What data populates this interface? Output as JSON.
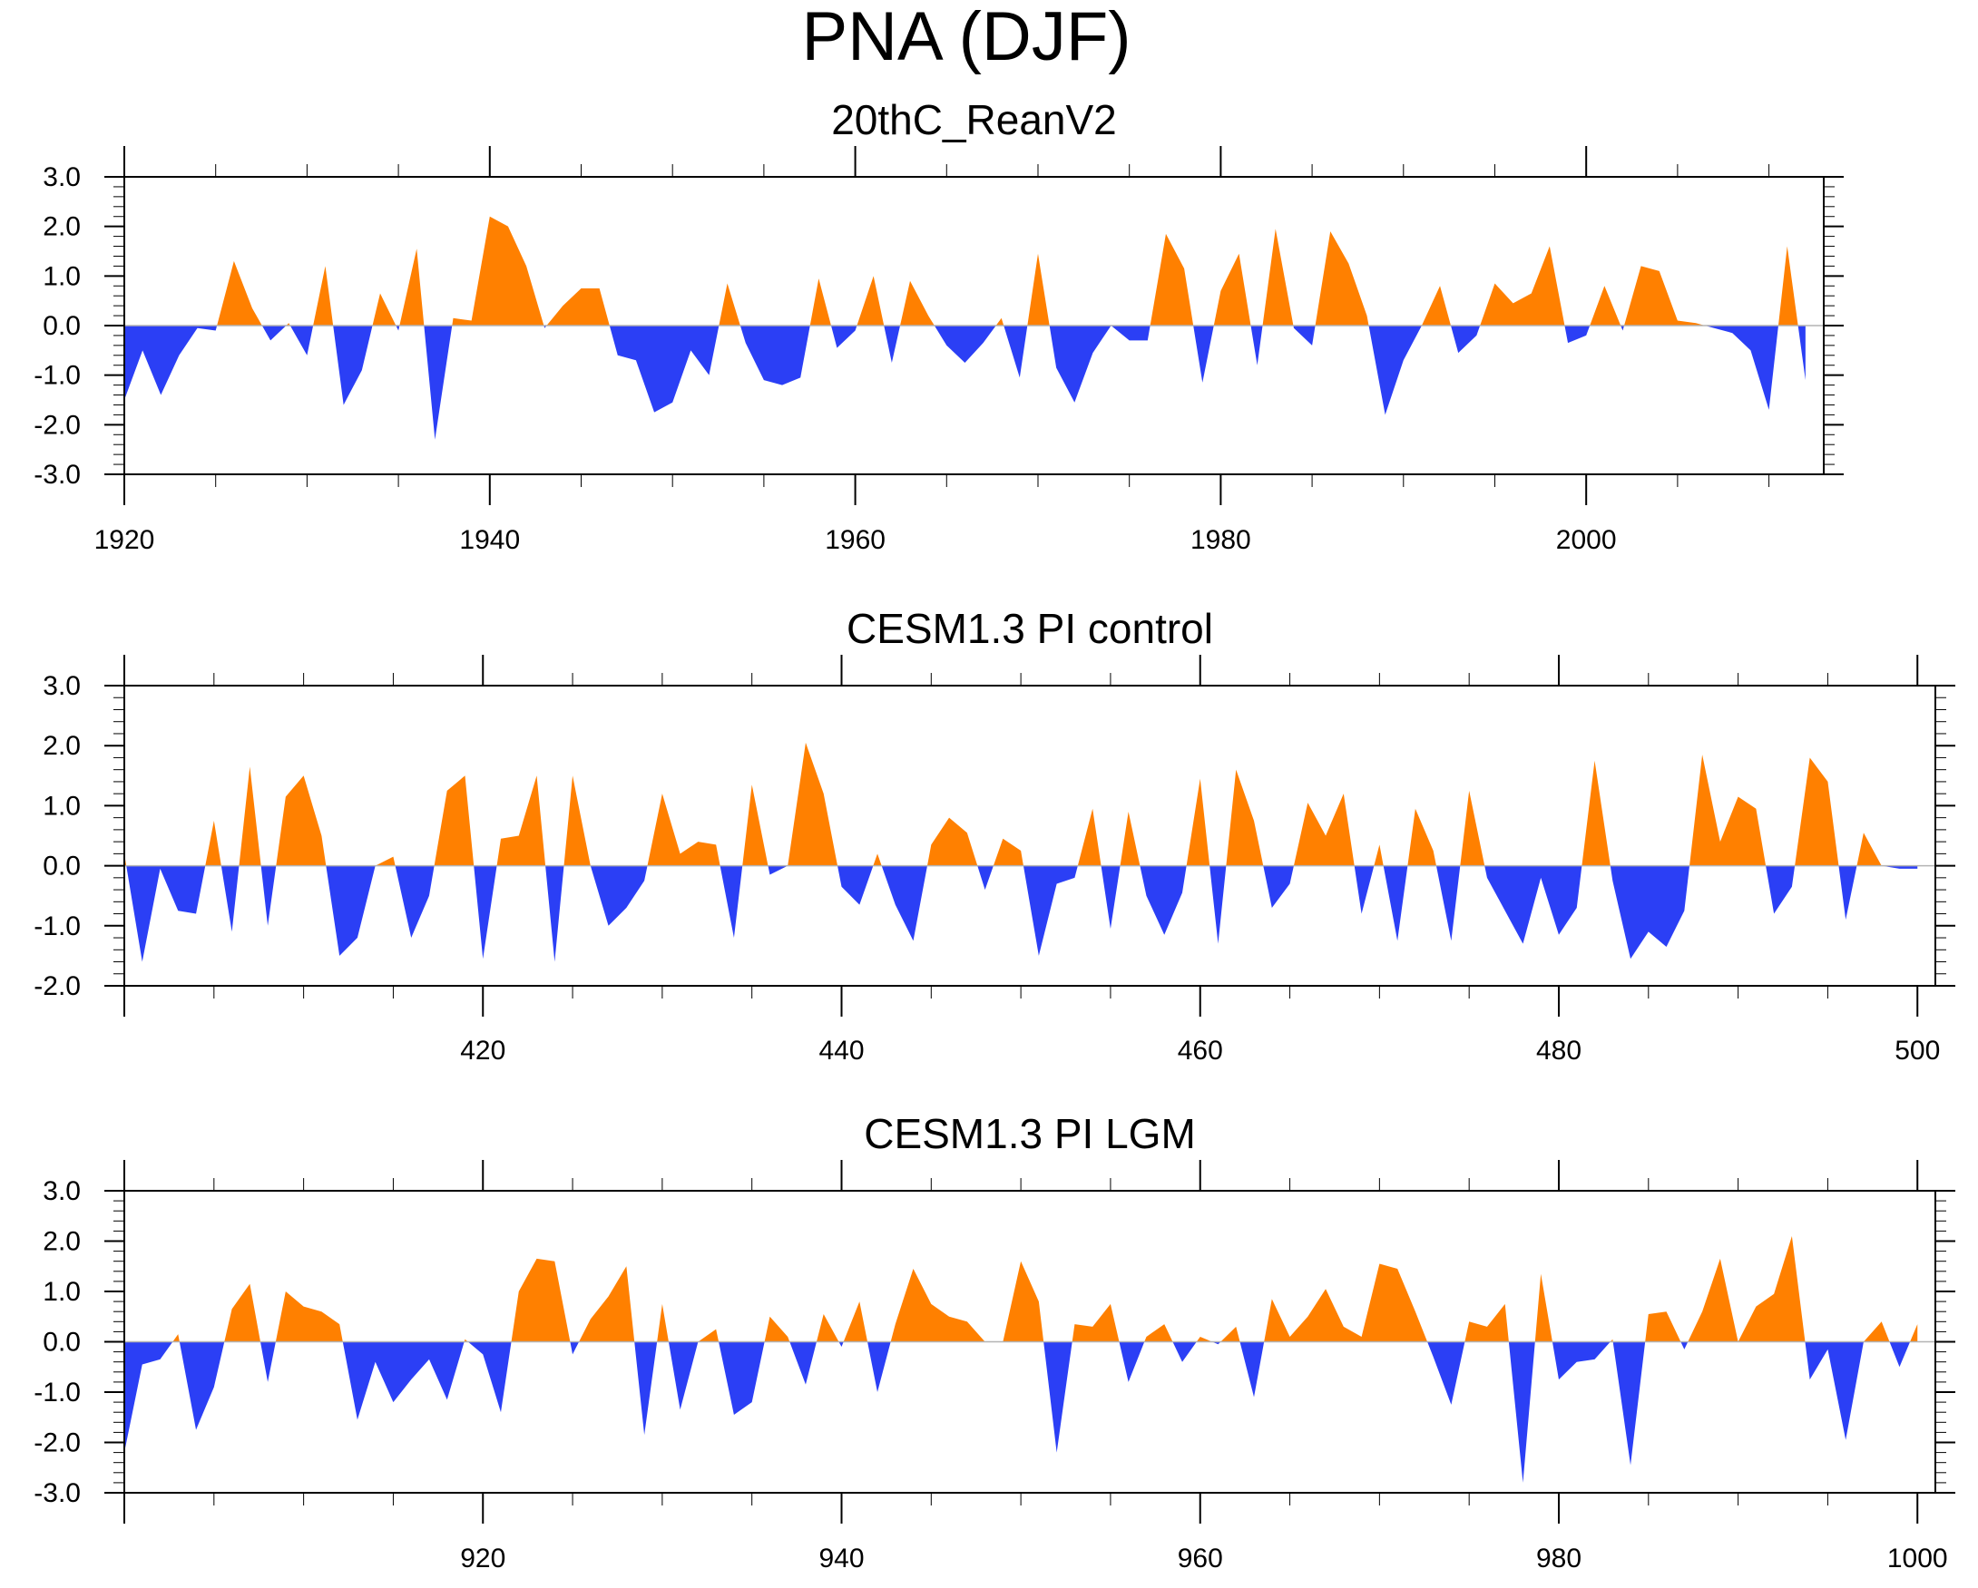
{
  "title": "PNA (DJF)",
  "colors": {
    "positive": "#ff8000",
    "negative": "#2b3ff5",
    "axis": "#000000",
    "zero_line": "#b4b4b4"
  },
  "chart_data": [
    {
      "type": "area",
      "title": "20thC_ReanV2",
      "xlim": [
        1920,
        2013
      ],
      "ylim": [
        -3.0,
        3.0
      ],
      "ytick_labels": [
        "3.0",
        "2.0",
        "1.0",
        "0.0",
        "-1.0",
        "-2.0",
        "-3.0"
      ],
      "xtick_labels": [
        "1920",
        "1940",
        "1960",
        "1980",
        "2000"
      ],
      "x_start": 1920,
      "values": [
        -1.5,
        -0.5,
        -1.4,
        -0.6,
        -0.05,
        -0.1,
        1.3,
        0.35,
        -0.3,
        0.05,
        -0.6,
        1.2,
        -1.6,
        -0.9,
        0.65,
        -0.1,
        1.55,
        -2.3,
        0.15,
        0.1,
        2.2,
        2.0,
        1.2,
        -0.05,
        0.4,
        0.75,
        0.75,
        -0.6,
        -0.7,
        -1.75,
        -1.55,
        -0.5,
        -1.0,
        0.85,
        -0.35,
        -1.1,
        -1.2,
        -1.05,
        0.95,
        -0.45,
        -0.1,
        1.0,
        -0.75,
        0.9,
        0.2,
        -0.4,
        -0.75,
        -0.35,
        0.15,
        -1.05,
        1.45,
        -0.85,
        -1.55,
        -0.55,
        0.0,
        -0.3,
        -0.3,
        1.85,
        1.15,
        -1.15,
        0.7,
        1.45,
        -0.8,
        1.95,
        -0.05,
        -0.4,
        1.9,
        1.25,
        0.2,
        -1.8,
        -0.7,
        0.0,
        0.8,
        -0.55,
        -0.2,
        0.85,
        0.45,
        0.65,
        1.6,
        -0.35,
        -0.2,
        0.8,
        -0.1,
        1.2,
        1.1,
        0.1,
        0.05,
        -0.05,
        -0.15,
        -0.5,
        -1.7,
        1.6,
        -1.1
      ]
    },
    {
      "type": "area",
      "title": "CESM1.3 PI control",
      "xlim": [
        400,
        501
      ],
      "ylim": [
        -2.0,
        3.0
      ],
      "ytick_labels": [
        "3.0",
        "2.0",
        "1.0",
        "0.0",
        "-1.0",
        "-2.0"
      ],
      "xtick_labels": [
        "420",
        "440",
        "460",
        "480",
        "500"
      ],
      "x_start": 400,
      "values": [
        0.2,
        -1.6,
        -0.05,
        -0.75,
        -0.8,
        0.75,
        -1.1,
        1.65,
        -1.0,
        1.15,
        1.5,
        0.5,
        -1.5,
        -1.2,
        0.0,
        0.15,
        -1.2,
        -0.5,
        1.25,
        1.5,
        -1.55,
        0.45,
        0.5,
        1.5,
        -1.6,
        1.5,
        0.0,
        -1.0,
        -0.7,
        -0.25,
        1.2,
        0.2,
        0.4,
        0.35,
        -1.2,
        1.35,
        -0.15,
        0.0,
        2.05,
        1.2,
        -0.35,
        -0.65,
        0.2,
        -0.65,
        -1.25,
        0.35,
        0.8,
        0.55,
        -0.4,
        0.45,
        0.25,
        -1.5,
        -0.3,
        -0.2,
        0.95,
        -1.05,
        0.9,
        -0.5,
        -1.15,
        -0.45,
        1.45,
        -1.3,
        1.6,
        0.75,
        -0.7,
        -0.3,
        1.05,
        0.5,
        1.2,
        -0.8,
        0.35,
        -1.25,
        0.95,
        0.25,
        -1.25,
        1.25,
        -0.2,
        -0.75,
        -1.3,
        -0.2,
        -1.15,
        -0.7,
        1.75,
        -0.25,
        -1.55,
        -1.1,
        -1.35,
        -0.75,
        1.85,
        0.4,
        1.15,
        0.95,
        -0.8,
        -0.35,
        1.8,
        1.4,
        -0.9,
        0.55,
        0.0,
        -0.05,
        -0.05
      ]
    },
    {
      "type": "area",
      "title": "CESM1.3 PI LGM",
      "xlim": [
        900,
        1001
      ],
      "ylim": [
        -3.0,
        3.0
      ],
      "ytick_labels": [
        "3.0",
        "2.0",
        "1.0",
        "0.0",
        "-1.0",
        "-2.0",
        "-3.0"
      ],
      "xtick_labels": [
        "920",
        "940",
        "960",
        "980",
        "1000"
      ],
      "x_start": 900,
      "values": [
        -2.2,
        -0.45,
        -0.35,
        0.15,
        -1.75,
        -0.9,
        0.65,
        1.15,
        -0.8,
        1.0,
        0.7,
        0.6,
        0.35,
        -1.55,
        -0.4,
        -1.2,
        -0.75,
        -0.35,
        -1.15,
        0.05,
        -0.25,
        -1.4,
        1.0,
        1.65,
        1.6,
        -0.25,
        0.45,
        0.9,
        1.5,
        -1.85,
        0.75,
        -1.35,
        0.0,
        0.25,
        -1.45,
        -1.2,
        0.5,
        0.1,
        -0.85,
        0.55,
        -0.1,
        0.8,
        -1.0,
        0.35,
        1.45,
        0.75,
        0.5,
        0.4,
        0.0,
        0.0,
        1.6,
        0.8,
        -2.2,
        0.35,
        0.3,
        0.75,
        -0.8,
        0.1,
        0.35,
        -0.4,
        0.1,
        -0.05,
        0.3,
        -1.1,
        0.85,
        0.1,
        0.5,
        1.05,
        0.3,
        0.1,
        1.55,
        1.45,
        0.6,
        -0.3,
        -1.25,
        0.4,
        0.3,
        0.75,
        -2.8,
        1.35,
        -0.75,
        -0.4,
        -0.35,
        0.05,
        -2.45,
        0.55,
        0.6,
        -0.15,
        0.6,
        1.65,
        0.0,
        0.7,
        0.95,
        2.1,
        -0.75,
        -0.15,
        -1.95,
        0.0,
        0.4,
        -0.5,
        0.35
      ]
    }
  ]
}
